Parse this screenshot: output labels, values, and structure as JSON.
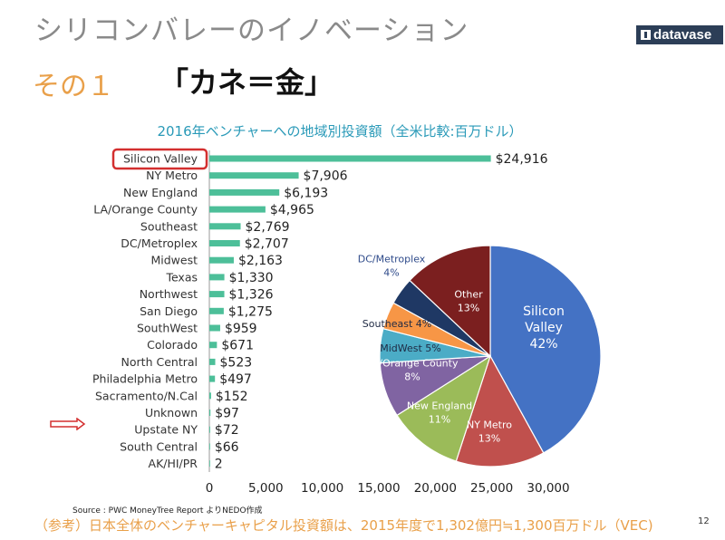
{
  "header": {
    "title": "シリコンバレーのイノベーション",
    "logo_text": "datavase"
  },
  "subtitle": {
    "left": "その１",
    "right": "「カネ＝金」"
  },
  "chart_data": [
    {
      "type": "bar",
      "orientation": "horizontal",
      "title": "2016年ベンチャーへの地域別投資額（全米比較:百万ドル）",
      "categories": [
        "Silicon Valley",
        "NY Metro",
        "New England",
        "LA/Orange County",
        "Southeast",
        "DC/Metroplex",
        "Midwest",
        "Texas",
        "Northwest",
        "San Diego",
        "SouthWest",
        "Colorado",
        "North Central",
        "Philadelphia Metro",
        "Sacramento/N.Cal",
        "Unknown",
        "Upstate NY",
        "South Central",
        "AK/HI/PR"
      ],
      "values": [
        24916,
        7906,
        6193,
        4965,
        2769,
        2707,
        2163,
        1330,
        1326,
        1275,
        959,
        671,
        523,
        497,
        152,
        97,
        72,
        66,
        2
      ],
      "value_labels": [
        "$24,916",
        "$7,906",
        "$6,193",
        "$4,965",
        "$2,769",
        "$2,707",
        "$2,163",
        "$1,330",
        "$1,326",
        "$1,275",
        "$959",
        "$671",
        "$523",
        "$497",
        "$152",
        "$97",
        "$72",
        "$66",
        "2"
      ],
      "xticks": [
        "0",
        "5,000",
        "10,000",
        "15,000",
        "20,000",
        "25,000",
        "30,000"
      ],
      "xlim": [
        0,
        30000
      ],
      "highlighted_category": "Silicon Valley",
      "bar_color": "#4dbf99",
      "highlight_color": "#d32f2f"
    },
    {
      "type": "pie",
      "slices": [
        {
          "name": "Silicon Valley",
          "label": "Silicon\nValley",
          "pct_label": "42%",
          "value": 42,
          "color": "#4472c4",
          "text_color": "#ffffff"
        },
        {
          "name": "NY Metro",
          "label": "NY Metro",
          "pct_label": "13%",
          "value": 13,
          "color": "#c0504d",
          "text_color": "#ffffff"
        },
        {
          "name": "New England",
          "label": "New England",
          "pct_label": "11%",
          "value": 11,
          "color": "#9bbb59",
          "text_color": "#ffffff"
        },
        {
          "name": "LA/Orange County",
          "label": "LA/Orange County",
          "pct_label": "8%",
          "value": 8,
          "color": "#8064a2",
          "text_color": "#ffffff"
        },
        {
          "name": "MidWest",
          "label": "MidWest",
          "pct_label": "5%",
          "value": 5,
          "color": "#4bacc6",
          "text_color": "#1f2a44"
        },
        {
          "name": "Southeast",
          "label": "Southeast",
          "pct_label": "4%",
          "value": 4,
          "color": "#f79646",
          "text_color": "#1f2a44"
        },
        {
          "name": "DC/Metroplex",
          "label": "DC/Metroplex",
          "pct_label": "4%",
          "value": 4,
          "color": "#1f3864",
          "text_color": "#2e4a8a"
        },
        {
          "name": "Other",
          "label": "Other",
          "pct_label": "13%",
          "value": 13,
          "color": "#7b1f1f",
          "text_color": "#ffffff"
        }
      ]
    }
  ],
  "source": "Source : PWC MoneyTree Report よりNEDO作成",
  "footnote": "（参考）日本全体のベンチャーキャピタル投資額は、2015年度で1,302億円≒1,300百万ドル（VEC)",
  "page_number": "12"
}
